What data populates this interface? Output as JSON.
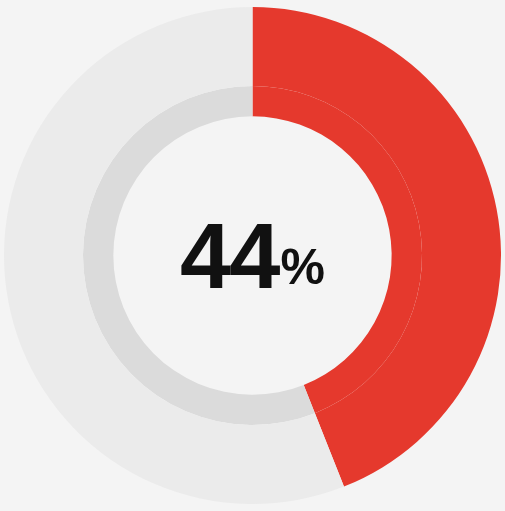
{
  "chart_data": {
    "type": "doughnut",
    "values": [
      44,
      56
    ],
    "value_labels": [
      "44%",
      null
    ],
    "colors": [
      "#e5392d",
      "#ebebeb"
    ]
  }
}
